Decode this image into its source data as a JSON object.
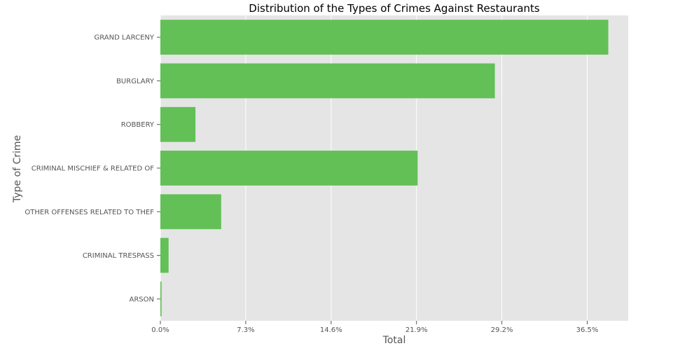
{
  "chart_data": {
    "type": "bar",
    "orientation": "horizontal",
    "title": "Distribution of the Types of Crimes Against Restaurants",
    "xlabel": "Total",
    "ylabel": "Type of Crime",
    "categories": [
      "GRAND LARCENY",
      "BURGLARY",
      "ROBBERY",
      "CRIMINAL MISCHIEF & RELATED OF",
      "OTHER OFFENSES RELATED TO THEF",
      "CRIMINAL TRESPASS",
      "ARSON"
    ],
    "values": [
      38.3,
      28.6,
      3.0,
      22.0,
      5.2,
      0.7,
      0.1
    ],
    "value_unit": "%",
    "xlim": [
      0,
      38.3
    ],
    "xticks": [
      "0.0%",
      "7.3%",
      "14.6%",
      "21.9%",
      "29.2%",
      "36.5%"
    ],
    "xtick_values": [
      0,
      7.3,
      14.6,
      21.9,
      29.2,
      36.5
    ],
    "grid": "x",
    "legend": "none",
    "bar_color": "#63c057",
    "plot_background": "#e5e5e5",
    "grid_color": "#ffffff"
  }
}
